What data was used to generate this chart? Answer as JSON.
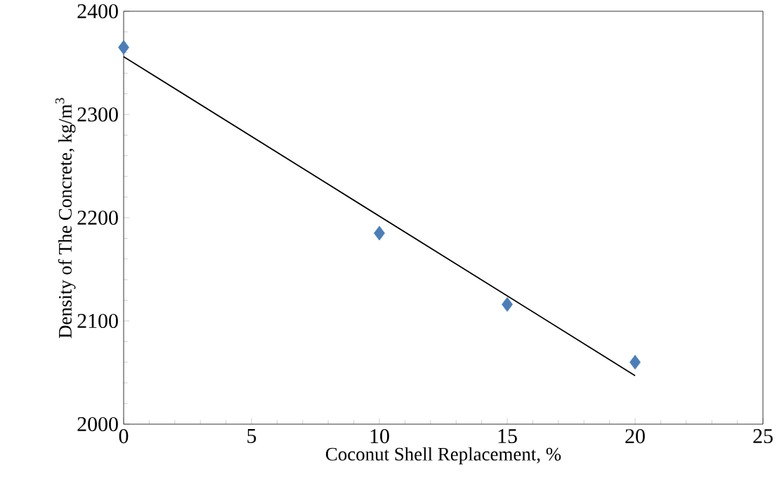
{
  "chart_data": {
    "type": "scatter",
    "xlabel": "Coconut Shell Replacement, %",
    "ylabel": "Density of The Concrete, kg/m$^{3}$",
    "x": [
      0,
      10,
      15,
      20
    ],
    "series": [
      {
        "color": "#4a7ebb",
        "marker": "diamond",
        "values": [
          2365,
          2185,
          2116,
          2060
        ]
      },
      {
        "type": "line",
        "color": "#000000",
        "x": [
          0,
          20
        ],
        "values": [
          2356,
          2047
        ]
      }
    ],
    "xlim": [
      0,
      25
    ],
    "xticks": [
      0,
      5,
      10,
      15,
      20,
      25
    ],
    "ylim": [
      2000,
      2400
    ],
    "yticks": [
      2000,
      2100,
      2200,
      2300,
      2400
    ],
    "grid": false
  }
}
